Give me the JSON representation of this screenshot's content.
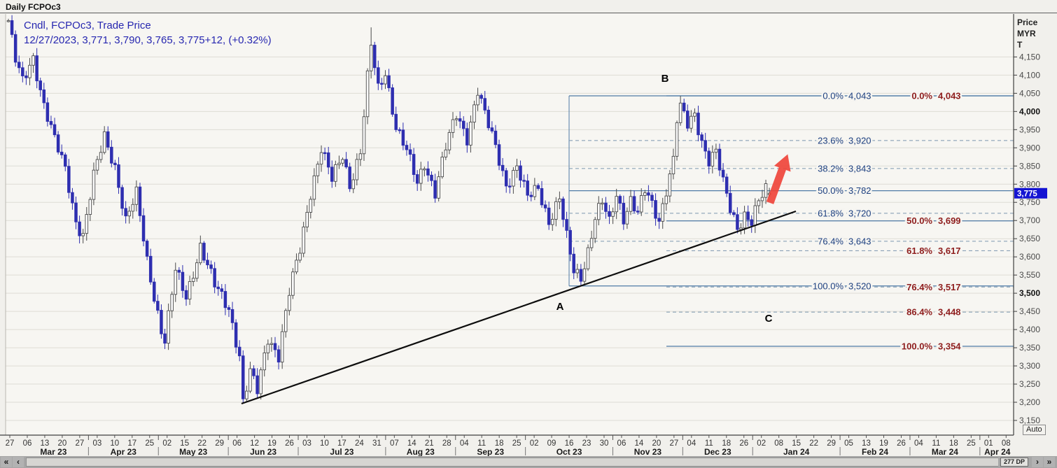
{
  "window": {
    "title": "Daily FCPOc3"
  },
  "legend": {
    "line1": "Cndl, FCPOc3, Trade Price",
    "line2": "12/27/2023, 3,771, 3,790, 3,765, 3,775+12, (+0.32%)"
  },
  "price_axis": {
    "header": [
      "Price",
      "MYR",
      "T"
    ],
    "ticks": [
      "4,150",
      "4,100",
      "4,050",
      "4,000",
      "3,950",
      "3,900",
      "3,850",
      "3,800",
      "3,750",
      "3,700",
      "3,650",
      "3,600",
      "3,550",
      "3,500",
      "3,450",
      "3,400",
      "3,350",
      "3,300",
      "3,250",
      "3,200",
      "3,150"
    ],
    "bold_ticks": [
      "4,000",
      "3,500"
    ],
    "top_value": 4150,
    "step": 50,
    "last_price": "3,775",
    "auto_label": "Auto"
  },
  "x_axis": {
    "leading_day": "27",
    "months": [
      {
        "label": "Mar 23",
        "days": [
          "06",
          "13",
          "20",
          "27"
        ]
      },
      {
        "label": "Apr 23",
        "days": [
          "03",
          "10",
          "17",
          "25"
        ]
      },
      {
        "label": "May 23",
        "days": [
          "02",
          "15",
          "22",
          "29"
        ]
      },
      {
        "label": "Jun 23",
        "days": [
          "06",
          "12",
          "19",
          "26"
        ]
      },
      {
        "label": "Jul 23",
        "days": [
          "03",
          "10",
          "17",
          "24",
          "31"
        ]
      },
      {
        "label": "Aug 23",
        "days": [
          "07",
          "14",
          "21",
          "28"
        ]
      },
      {
        "label": "Sep 23",
        "days": [
          "04",
          "11",
          "18",
          "25"
        ]
      },
      {
        "label": "Oct 23",
        "days": [
          "02",
          "09",
          "16",
          "23",
          "30"
        ]
      },
      {
        "label": "Nov 23",
        "days": [
          "06",
          "14",
          "20",
          "27"
        ]
      },
      {
        "label": "Dec 23",
        "days": [
          "04",
          "11",
          "18",
          "26"
        ]
      },
      {
        "label": "Jan 24",
        "days": [
          "02",
          "08",
          "15",
          "22",
          "29"
        ]
      },
      {
        "label": "Feb 24",
        "days": [
          "05",
          "13",
          "19",
          "26"
        ]
      },
      {
        "label": "Mar 24",
        "days": [
          "04",
          "11",
          "18",
          "25"
        ]
      },
      {
        "label": "Apr 24",
        "days": [
          "01",
          "08"
        ]
      }
    ]
  },
  "scrollbar": {
    "fast_left": "«",
    "step_left": "‹",
    "step_right": "›",
    "fast_right": "»",
    "bar_info": "277 DP"
  },
  "chart_data": {
    "type": "candlestick-ohlc",
    "instrument": "FCPOc3",
    "period": "Daily",
    "currency": "MYR",
    "last_ohlc": {
      "date": "12/27/2023",
      "open": 3771,
      "high": 3790,
      "low": 3765,
      "close": 3775,
      "change": "+12",
      "change_pct": "+0.32%"
    },
    "y_range": [
      3150,
      4150
    ],
    "grid_step": 50,
    "axis_map": {
      "p_ref": 4043,
      "y_ref": 137,
      "scale": 0.5196
    },
    "x0": 12,
    "dx": 5.08,
    "n_candles": 215,
    "price_waypoints": [
      [
        0,
        4250
      ],
      [
        2,
        4140
      ],
      [
        4,
        4080
      ],
      [
        7,
        4150
      ],
      [
        10,
        4020
      ],
      [
        13,
        3920
      ],
      [
        16,
        3840
      ],
      [
        19,
        3700
      ],
      [
        21,
        3660
      ],
      [
        24,
        3820
      ],
      [
        27,
        3930
      ],
      [
        30,
        3850
      ],
      [
        33,
        3700
      ],
      [
        36,
        3770
      ],
      [
        39,
        3590
      ],
      [
        43,
        3400
      ],
      [
        44,
        3370
      ],
      [
        47,
        3560
      ],
      [
        50,
        3490
      ],
      [
        54,
        3630
      ],
      [
        58,
        3520
      ],
      [
        62,
        3460
      ],
      [
        65,
        3330
      ],
      [
        66,
        3200
      ],
      [
        68,
        3280
      ],
      [
        70,
        3230
      ],
      [
        73,
        3380
      ],
      [
        76,
        3330
      ],
      [
        79,
        3500
      ],
      [
        82,
        3620
      ],
      [
        85,
        3780
      ],
      [
        88,
        3900
      ],
      [
        91,
        3810
      ],
      [
        94,
        3880
      ],
      [
        96,
        3800
      ],
      [
        99,
        3890
      ],
      [
        101,
        4090
      ],
      [
        102,
        4180
      ],
      [
        104,
        4060
      ],
      [
        106,
        4110
      ],
      [
        109,
        3960
      ],
      [
        112,
        3890
      ],
      [
        115,
        3800
      ],
      [
        117,
        3860
      ],
      [
        120,
        3780
      ],
      [
        123,
        3900
      ],
      [
        126,
        3990
      ],
      [
        129,
        3930
      ],
      [
        132,
        4060
      ],
      [
        134,
        3990
      ],
      [
        137,
        3900
      ],
      [
        140,
        3800
      ],
      [
        143,
        3850
      ],
      [
        146,
        3760
      ],
      [
        149,
        3790
      ],
      [
        152,
        3700
      ],
      [
        155,
        3760
      ],
      [
        157,
        3650
      ],
      [
        159,
        3560
      ],
      [
        161,
        3545
      ],
      [
        163,
        3620
      ],
      [
        165,
        3710
      ],
      [
        167,
        3750
      ],
      [
        169,
        3690
      ],
      [
        171,
        3770
      ],
      [
        173,
        3710
      ],
      [
        175,
        3760
      ],
      [
        177,
        3720
      ],
      [
        179,
        3780
      ],
      [
        181,
        3740
      ],
      [
        183,
        3700
      ],
      [
        185,
        3790
      ],
      [
        187,
        3870
      ],
      [
        188,
        3980
      ],
      [
        189,
        4010
      ],
      [
        191,
        3960
      ],
      [
        193,
        3990
      ],
      [
        195,
        3920
      ],
      [
        197,
        3870
      ],
      [
        199,
        3890
      ],
      [
        201,
        3800
      ],
      [
        203,
        3730
      ],
      [
        205,
        3680
      ],
      [
        207,
        3720
      ],
      [
        209,
        3700
      ],
      [
        211,
        3750
      ],
      [
        213,
        3780
      ],
      [
        214,
        3775
      ]
    ],
    "fib_sets": [
      {
        "name": "fib-retracement-primary",
        "cls": "primary",
        "geom": {
          "x1": 813,
          "x2": 1448,
          "pct_x": 1205,
          "val_x": 1212,
          "connector": true
        },
        "levels": [
          {
            "pct": "0.0%",
            "price": "4,043",
            "value": 4043,
            "style": "solid"
          },
          {
            "pct": "23.6%",
            "price": "3,920",
            "value": 3920,
            "style": "dashed"
          },
          {
            "pct": "38.2%",
            "price": "3,843",
            "value": 3843,
            "style": "dashed"
          },
          {
            "pct": "50.0%",
            "price": "3,782",
            "value": 3782,
            "style": "solid"
          },
          {
            "pct": "61.8%",
            "price": "3,720",
            "value": 3720,
            "style": "dashed"
          },
          {
            "pct": "76.4%",
            "price": "3,643",
            "value": 3643,
            "style": "dashed"
          },
          {
            "pct": "100.0%",
            "price": "3,520",
            "value": 3520,
            "style": "solid"
          }
        ]
      },
      {
        "name": "fib-retracement-secondary",
        "cls": "secondary",
        "geom": {
          "x1": 952,
          "x2": 1448,
          "pct_x": 1332,
          "val_x": 1340,
          "connector": false
        },
        "levels": [
          {
            "pct": "0.0%",
            "price": "4,043",
            "value": 4043,
            "style": "solid"
          },
          {
            "pct": "50.0%",
            "price": "3,699",
            "value": 3699,
            "style": "solid"
          },
          {
            "pct": "61.8%",
            "price": "3,617",
            "value": 3617,
            "style": "dashed"
          },
          {
            "pct": "76.4%",
            "price": "3,517",
            "value": 3517,
            "style": "dashed"
          },
          {
            "pct": "86.4%",
            "price": "3,448",
            "value": 3448,
            "style": "dashed"
          },
          {
            "pct": "100.0%",
            "price": "3,354",
            "value": 3354,
            "style": "solid"
          }
        ]
      }
    ],
    "trendline": {
      "x1": 345,
      "y1": 577,
      "x2": 1137,
      "y2": 302
    },
    "arrow": {
      "x": 1100,
      "y": 290,
      "angle": -70,
      "length": 74
    },
    "point_labels": [
      {
        "text": "A",
        "x": 800,
        "y": 443
      },
      {
        "text": "B",
        "x": 950,
        "y": 117
      },
      {
        "text": "C",
        "x": 1098,
        "y": 460
      }
    ]
  },
  "colors": {
    "page_bg": "#f1f0ec",
    "plot_bg": "#f7f6f2",
    "grid": "#dedcd5",
    "candle_down": "#2e2eb0",
    "candle_up_fill": "#ffffff",
    "candle_up_border": "#4a4a4a",
    "fib_line_solid": "#4f7ba6",
    "fib_line_dash": "#7b97b0",
    "trendline": "#0d0d0d",
    "arrow": "#ee4136",
    "badge_bg": "#1414d2",
    "axis_line": "#3f3f3f"
  }
}
